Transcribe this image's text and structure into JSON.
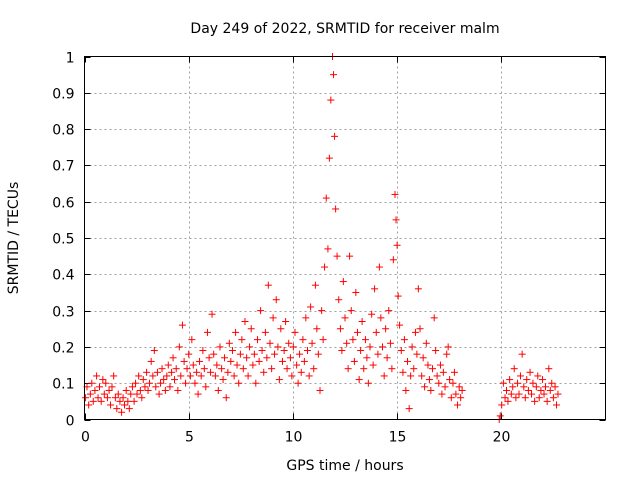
{
  "chart_data": {
    "type": "scatter",
    "title": "Day 249 of 2022, SRMTID for receiver malm",
    "xlabel": "GPS time / hours",
    "ylabel": "SRMTID / TECUs",
    "xlim": [
      0,
      25
    ],
    "ylim": [
      0,
      1
    ],
    "xticks": [
      0,
      5,
      10,
      15,
      20
    ],
    "xtick_labels": [
      "0",
      "5",
      "10",
      "15",
      "20"
    ],
    "yticks": [
      0,
      0.1,
      0.2,
      0.3,
      0.4,
      0.5,
      0.6,
      0.7,
      0.8,
      0.9,
      1
    ],
    "ytick_labels": [
      "0",
      "0.1",
      "0.2",
      "0.3",
      "0.4",
      "0.5",
      "0.6",
      "0.7",
      "0.8",
      "0.9",
      "1"
    ],
    "grid": true,
    "marker": "+",
    "color": "#ff0000",
    "series": [
      {
        "name": "SRMTID",
        "points": [
          [
            0.05,
            0.06
          ],
          [
            0.12,
            0.09
          ],
          [
            0.2,
            0.04
          ],
          [
            0.28,
            0.07
          ],
          [
            0.35,
            0.1
          ],
          [
            0.42,
            0.05
          ],
          [
            0.5,
            0.08
          ],
          [
            0.58,
            0.12
          ],
          [
            0.65,
            0.06
          ],
          [
            0.72,
            0.09
          ],
          [
            0.8,
            0.05
          ],
          [
            0.88,
            0.11
          ],
          [
            0.95,
            0.07
          ],
          [
            1.02,
            0.1
          ],
          [
            1.1,
            0.06
          ],
          [
            1.18,
            0.08
          ],
          [
            1.25,
            0.04
          ],
          [
            1.32,
            0.09
          ],
          [
            1.4,
            0.12
          ],
          [
            1.48,
            0.06
          ],
          [
            1.55,
            0.03
          ],
          [
            1.62,
            0.07
          ],
          [
            1.7,
            0.05
          ],
          [
            1.78,
            0.02
          ],
          [
            1.85,
            0.06
          ],
          [
            1.92,
            0.04
          ],
          [
            2.0,
            0.08
          ],
          [
            2.08,
            0.05
          ],
          [
            2.15,
            0.03
          ],
          [
            2.22,
            0.07
          ],
          [
            2.3,
            0.09
          ],
          [
            2.38,
            0.05
          ],
          [
            2.45,
            0.1
          ],
          [
            2.52,
            0.07
          ],
          [
            2.6,
            0.12
          ],
          [
            2.68,
            0.08
          ],
          [
            2.75,
            0.06
          ],
          [
            2.82,
            0.11
          ],
          [
            2.9,
            0.09
          ],
          [
            2.98,
            0.13
          ],
          [
            3.05,
            0.08
          ],
          [
            3.12,
            0.1
          ],
          [
            3.2,
            0.16
          ],
          [
            3.28,
            0.12
          ],
          [
            3.35,
            0.19
          ],
          [
            3.42,
            0.09
          ],
          [
            3.5,
            0.13
          ],
          [
            3.58,
            0.07
          ],
          [
            3.65,
            0.1
          ],
          [
            3.72,
            0.14
          ],
          [
            3.8,
            0.11
          ],
          [
            3.88,
            0.08
          ],
          [
            3.95,
            0.12
          ],
          [
            4.02,
            0.15
          ],
          [
            4.1,
            0.09
          ],
          [
            4.18,
            0.13
          ],
          [
            4.25,
            0.17
          ],
          [
            4.32,
            0.11
          ],
          [
            4.4,
            0.14
          ],
          [
            4.48,
            0.08
          ],
          [
            4.55,
            0.2
          ],
          [
            4.62,
            0.12
          ],
          [
            4.7,
            0.26
          ],
          [
            4.78,
            0.16
          ],
          [
            4.85,
            0.1
          ],
          [
            4.92,
            0.14
          ],
          [
            5.0,
            0.18
          ],
          [
            5.08,
            0.12
          ],
          [
            5.15,
            0.22
          ],
          [
            5.22,
            0.15
          ],
          [
            5.3,
            0.1
          ],
          [
            5.38,
            0.13
          ],
          [
            5.45,
            0.07
          ],
          [
            5.52,
            0.16
          ],
          [
            5.6,
            0.12
          ],
          [
            5.68,
            0.19
          ],
          [
            5.75,
            0.14
          ],
          [
            5.82,
            0.09
          ],
          [
            5.9,
            0.24
          ],
          [
            5.98,
            0.17
          ],
          [
            6.05,
            0.13
          ],
          [
            6.12,
            0.29
          ],
          [
            6.2,
            0.18
          ],
          [
            6.28,
            0.12
          ],
          [
            6.35,
            0.15
          ],
          [
            6.42,
            0.08
          ],
          [
            6.5,
            0.2
          ],
          [
            6.58,
            0.14
          ],
          [
            6.65,
            0.11
          ],
          [
            6.72,
            0.17
          ],
          [
            6.8,
            0.06
          ],
          [
            6.88,
            0.13
          ],
          [
            6.95,
            0.21
          ],
          [
            7.02,
            0.16
          ],
          [
            7.1,
            0.19
          ],
          [
            7.18,
            0.12
          ],
          [
            7.25,
            0.24
          ],
          [
            7.32,
            0.15
          ],
          [
            7.4,
            0.1
          ],
          [
            7.48,
            0.18
          ],
          [
            7.55,
            0.22
          ],
          [
            7.62,
            0.14
          ],
          [
            7.7,
            0.27
          ],
          [
            7.78,
            0.17
          ],
          [
            7.85,
            0.12
          ],
          [
            7.92,
            0.2
          ],
          [
            8.0,
            0.25
          ],
          [
            8.08,
            0.15
          ],
          [
            8.15,
            0.18
          ],
          [
            8.22,
            0.1
          ],
          [
            8.3,
            0.22
          ],
          [
            8.38,
            0.16
          ],
          [
            8.45,
            0.3
          ],
          [
            8.52,
            0.19
          ],
          [
            8.6,
            0.13
          ],
          [
            8.68,
            0.24
          ],
          [
            8.75,
            0.17
          ],
          [
            8.82,
            0.37
          ],
          [
            8.9,
            0.21
          ],
          [
            8.98,
            0.14
          ],
          [
            9.05,
            0.28
          ],
          [
            9.12,
            0.18
          ],
          [
            9.2,
            0.33
          ],
          [
            9.28,
            0.2
          ],
          [
            9.35,
            0.11
          ],
          [
            9.42,
            0.25
          ],
          [
            9.5,
            0.16
          ],
          [
            9.58,
            0.19
          ],
          [
            9.65,
            0.27
          ],
          [
            9.72,
            0.14
          ],
          [
            9.8,
            0.21
          ],
          [
            9.88,
            0.17
          ],
          [
            9.95,
            0.12
          ],
          [
            10.02,
            0.2
          ],
          [
            10.1,
            0.24
          ],
          [
            10.18,
            0.15
          ],
          [
            10.25,
            0.1
          ],
          [
            10.32,
            0.18
          ],
          [
            10.4,
            0.13
          ],
          [
            10.48,
            0.22
          ],
          [
            10.55,
            0.16
          ],
          [
            10.62,
            0.28
          ],
          [
            10.7,
            0.19
          ],
          [
            10.78,
            0.12
          ],
          [
            10.85,
            0.31
          ],
          [
            10.92,
            0.21
          ],
          [
            11.0,
            0.14
          ],
          [
            11.08,
            0.37
          ],
          [
            11.15,
            0.25
          ],
          [
            11.22,
            0.18
          ],
          [
            11.3,
            0.08
          ],
          [
            11.38,
            0.3
          ],
          [
            11.45,
            0.22
          ],
          [
            11.52,
            0.42
          ],
          [
            11.6,
            0.61
          ],
          [
            11.68,
            0.47
          ],
          [
            11.75,
            0.72
          ],
          [
            11.82,
            0.88
          ],
          [
            11.9,
            1.0
          ],
          [
            11.95,
            0.95
          ],
          [
            12.0,
            0.78
          ],
          [
            12.05,
            0.58
          ],
          [
            12.12,
            0.45
          ],
          [
            12.2,
            0.33
          ],
          [
            12.28,
            0.25
          ],
          [
            12.35,
            0.19
          ],
          [
            12.42,
            0.38
          ],
          [
            12.5,
            0.28
          ],
          [
            12.58,
            0.21
          ],
          [
            12.65,
            0.14
          ],
          [
            12.72,
            0.45
          ],
          [
            12.8,
            0.3
          ],
          [
            12.88,
            0.22
          ],
          [
            12.95,
            0.16
          ],
          [
            13.02,
            0.35
          ],
          [
            13.1,
            0.24
          ],
          [
            13.18,
            0.11
          ],
          [
            13.25,
            0.19
          ],
          [
            13.32,
            0.27
          ],
          [
            13.4,
            0.14
          ],
          [
            13.48,
            0.22
          ],
          [
            13.55,
            0.17
          ],
          [
            13.62,
            0.1
          ],
          [
            13.7,
            0.2
          ],
          [
            13.78,
            0.29
          ],
          [
            13.85,
            0.15
          ],
          [
            13.92,
            0.36
          ],
          [
            14.0,
            0.24
          ],
          [
            14.08,
            0.18
          ],
          [
            14.15,
            0.42
          ],
          [
            14.22,
            0.28
          ],
          [
            14.3,
            0.2
          ],
          [
            14.38,
            0.12
          ],
          [
            14.45,
            0.25
          ],
          [
            14.52,
            0.17
          ],
          [
            14.6,
            0.3
          ],
          [
            14.68,
            0.21
          ],
          [
            14.75,
            0.14
          ],
          [
            14.82,
            0.44
          ],
          [
            14.9,
            0.62
          ],
          [
            14.95,
            0.55
          ],
          [
            15.0,
            0.48
          ],
          [
            15.05,
            0.34
          ],
          [
            15.12,
            0.26
          ],
          [
            15.2,
            0.19
          ],
          [
            15.28,
            0.13
          ],
          [
            15.35,
            0.22
          ],
          [
            15.42,
            0.08
          ],
          [
            15.5,
            0.16
          ],
          [
            15.58,
            0.03
          ],
          [
            15.65,
            0.12
          ],
          [
            15.72,
            0.2
          ],
          [
            15.8,
            0.14
          ],
          [
            15.88,
            0.24
          ],
          [
            15.95,
            0.18
          ],
          [
            16.02,
            0.36
          ],
          [
            16.1,
            0.25
          ],
          [
            16.18,
            0.12
          ],
          [
            16.25,
            0.17
          ],
          [
            16.32,
            0.09
          ],
          [
            16.4,
            0.21
          ],
          [
            16.48,
            0.15
          ],
          [
            16.55,
            0.11
          ],
          [
            16.62,
            0.08
          ],
          [
            16.7,
            0.14
          ],
          [
            16.78,
            0.28
          ],
          [
            16.85,
            0.19
          ],
          [
            16.92,
            0.12
          ],
          [
            17.0,
            0.1
          ],
          [
            17.08,
            0.15
          ],
          [
            17.15,
            0.07
          ],
          [
            17.22,
            0.13
          ],
          [
            17.3,
            0.09
          ],
          [
            17.38,
            0.18
          ],
          [
            17.45,
            0.2
          ],
          [
            17.52,
            0.11
          ],
          [
            17.6,
            0.06
          ],
          [
            17.68,
            0.1
          ],
          [
            17.75,
            0.13
          ],
          [
            17.82,
            0.07
          ],
          [
            17.9,
            0.04
          ],
          [
            17.98,
            0.09
          ],
          [
            18.05,
            0.06
          ],
          [
            18.12,
            0.08
          ],
          [
            19.9,
            0.0
          ],
          [
            19.95,
            0.01
          ],
          [
            20.02,
            0.04
          ],
          [
            20.1,
            0.1
          ],
          [
            20.18,
            0.06
          ],
          [
            20.25,
            0.08
          ],
          [
            20.32,
            0.05
          ],
          [
            20.4,
            0.11
          ],
          [
            20.48,
            0.07
          ],
          [
            20.55,
            0.09
          ],
          [
            20.62,
            0.14
          ],
          [
            20.7,
            0.06
          ],
          [
            20.78,
            0.1
          ],
          [
            20.85,
            0.07
          ],
          [
            20.92,
            0.12
          ],
          [
            21.0,
            0.18
          ],
          [
            21.08,
            0.09
          ],
          [
            21.15,
            0.06
          ],
          [
            21.22,
            0.11
          ],
          [
            21.3,
            0.08
          ],
          [
            21.38,
            0.13
          ],
          [
            21.45,
            0.07
          ],
          [
            21.52,
            0.1
          ],
          [
            21.6,
            0.05
          ],
          [
            21.68,
            0.09
          ],
          [
            21.75,
            0.12
          ],
          [
            21.82,
            0.06
          ],
          [
            21.9,
            0.08
          ],
          [
            21.98,
            0.11
          ],
          [
            22.05,
            0.07
          ],
          [
            22.12,
            0.09
          ],
          [
            22.2,
            0.05
          ],
          [
            22.28,
            0.14
          ],
          [
            22.35,
            0.08
          ],
          [
            22.42,
            0.1
          ],
          [
            22.5,
            0.06
          ],
          [
            22.58,
            0.09
          ],
          [
            22.65,
            0.04
          ],
          [
            22.72,
            0.07
          ]
        ]
      }
    ]
  }
}
